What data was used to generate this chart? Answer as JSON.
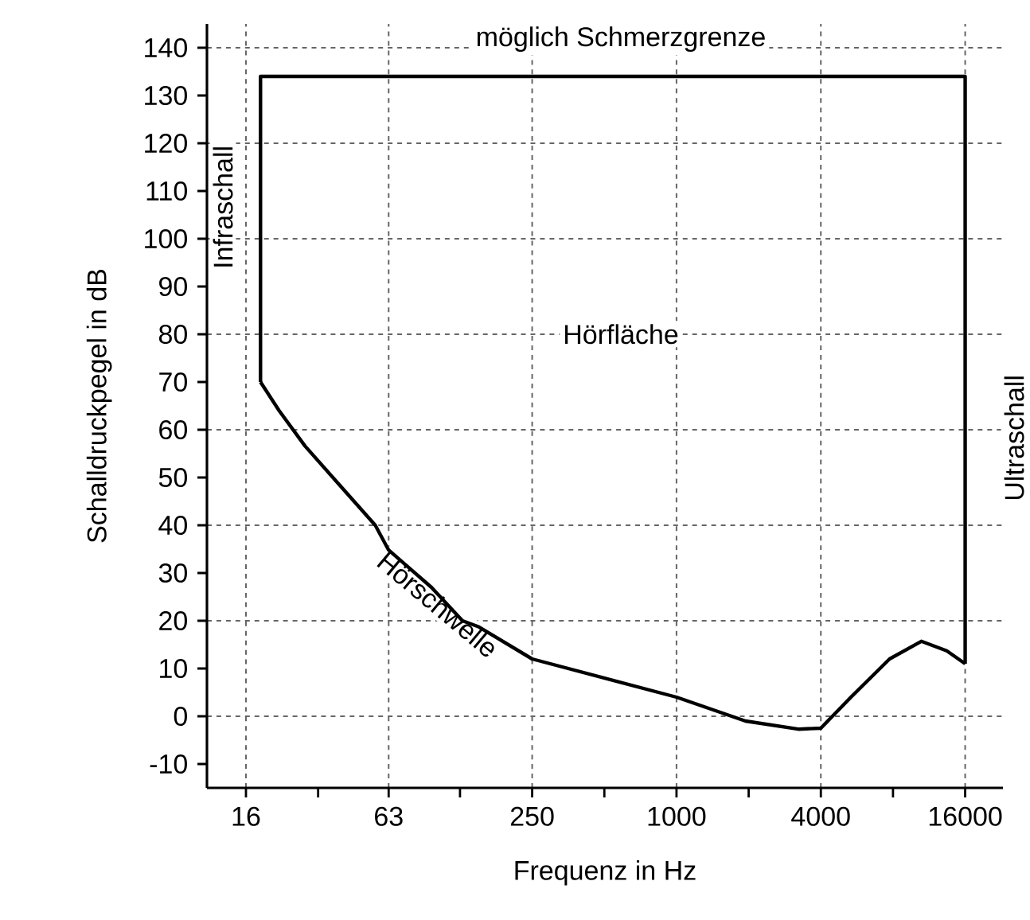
{
  "chart_data": {
    "type": "line",
    "xlabel": "Frequenz in Hz",
    "ylabel": "Schalldruckpegel in dB",
    "log": "x",
    "grid": true,
    "line_style": "solid",
    "marker": "none",
    "xlim": [
      11,
      23000
    ],
    "ylim": [
      -15,
      145
    ],
    "xticks": [
      16,
      {
        "value": 32,
        "label": null
      },
      63,
      {
        "value": 125,
        "label": null
      },
      250,
      {
        "value": 500,
        "label": null
      },
      1000,
      {
        "value": 2000,
        "label": null
      },
      4000,
      {
        "value": 8000,
        "label": null
      },
      16000
    ],
    "yticks": [
      -10,
      0,
      10,
      20,
      30,
      40,
      50,
      60,
      70,
      80,
      90,
      100,
      110,
      120,
      130,
      140
    ],
    "series": [
      {
        "color": "#000000",
        "x": [
          18.4,
          22,
          28.2,
          40,
          55.4,
          63,
          95,
          128,
          150,
          250,
          1000,
          1940,
          3220,
          4000,
          5340,
          7740,
          10500,
          13400,
          16000
        ],
        "values": [
          70,
          64,
          56.6,
          48,
          40,
          34.8,
          27,
          20,
          18.7,
          12,
          4,
          -1,
          -2.7,
          -2.5,
          4,
          12,
          15.7,
          13.7,
          11
        ]
      },
      {
        "color": "#000000",
        "x": [
          18.4,
          18.4,
          16000,
          16000
        ],
        "values": [
          70,
          134,
          134,
          11
        ]
      }
    ],
    "annotations": [
      "möglich Schmerzgrenze",
      "Hörfläche",
      "Infraschall",
      "Ultraschall",
      "Hörschwelle"
    ]
  }
}
